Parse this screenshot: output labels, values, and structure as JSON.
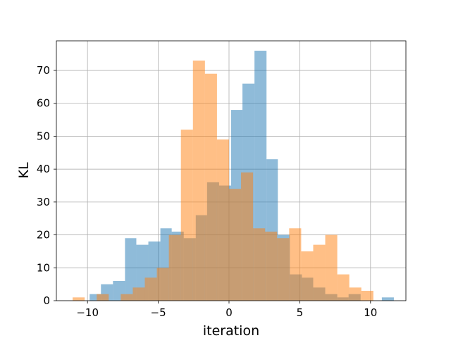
{
  "chart_data": {
    "type": "bar",
    "title": "",
    "xlabel": "iteration",
    "ylabel": "KL",
    "xlim": [
      -12.2,
      12.5
    ],
    "ylim": [
      0,
      79
    ],
    "grid": true,
    "legend": "none",
    "xticks": [
      -10,
      -5,
      0,
      5,
      10
    ],
    "xtick_labels": [
      "−10",
      "−5",
      "0",
      "5",
      "10"
    ],
    "yticks": [
      0,
      10,
      20,
      30,
      40,
      50,
      60,
      70
    ],
    "series": [
      {
        "color": "#1f77b4",
        "opacity": 0.5,
        "bins": [
          [
            -9.85,
            -9.05,
            2
          ],
          [
            -9.05,
            -8.2,
            5
          ],
          [
            -8.2,
            -7.35,
            6
          ],
          [
            -7.35,
            -6.55,
            19
          ],
          [
            -6.55,
            -5.7,
            17
          ],
          [
            -5.7,
            -4.85,
            18
          ],
          [
            -4.85,
            -4.05,
            22
          ],
          [
            -4.05,
            -3.2,
            21
          ],
          [
            -3.2,
            -2.35,
            19
          ],
          [
            -2.35,
            -1.55,
            26
          ],
          [
            -1.55,
            -0.7,
            36
          ],
          [
            -0.7,
            0.15,
            35
          ],
          [
            0.15,
            0.95,
            58
          ],
          [
            0.95,
            1.8,
            66
          ],
          [
            1.8,
            2.65,
            76
          ],
          [
            2.65,
            3.45,
            43
          ],
          [
            3.45,
            4.3,
            20
          ],
          [
            4.3,
            5.15,
            8
          ],
          [
            5.15,
            5.95,
            7
          ],
          [
            5.95,
            6.8,
            4
          ],
          [
            6.8,
            7.65,
            2
          ],
          [
            7.65,
            8.45,
            1
          ],
          [
            8.45,
            9.3,
            2
          ],
          [
            10.8,
            11.65,
            1
          ]
        ]
      },
      {
        "color": "#ff7f0e",
        "opacity": 0.5,
        "bins": [
          [
            -11.05,
            -10.2,
            1
          ],
          [
            -9.35,
            -8.5,
            2
          ],
          [
            -8.5,
            -7.65,
            0
          ],
          [
            -7.65,
            -6.8,
            2
          ],
          [
            -6.8,
            -5.95,
            4
          ],
          [
            -5.95,
            -5.1,
            7
          ],
          [
            -5.1,
            -4.25,
            10
          ],
          [
            -4.25,
            -3.4,
            20
          ],
          [
            -3.4,
            -2.55,
            52
          ],
          [
            -2.55,
            -1.7,
            73
          ],
          [
            -1.7,
            -0.85,
            69
          ],
          [
            -0.85,
            0.0,
            49
          ],
          [
            0.0,
            0.85,
            34
          ],
          [
            0.85,
            1.7,
            39
          ],
          [
            1.7,
            2.55,
            22
          ],
          [
            2.55,
            3.4,
            21
          ],
          [
            3.4,
            4.25,
            19
          ],
          [
            4.25,
            5.1,
            22
          ],
          [
            5.1,
            5.95,
            15
          ],
          [
            5.95,
            6.8,
            17
          ],
          [
            6.8,
            7.65,
            20
          ],
          [
            7.65,
            8.5,
            8
          ],
          [
            8.5,
            9.35,
            4
          ],
          [
            9.35,
            10.2,
            3
          ]
        ]
      }
    ]
  }
}
